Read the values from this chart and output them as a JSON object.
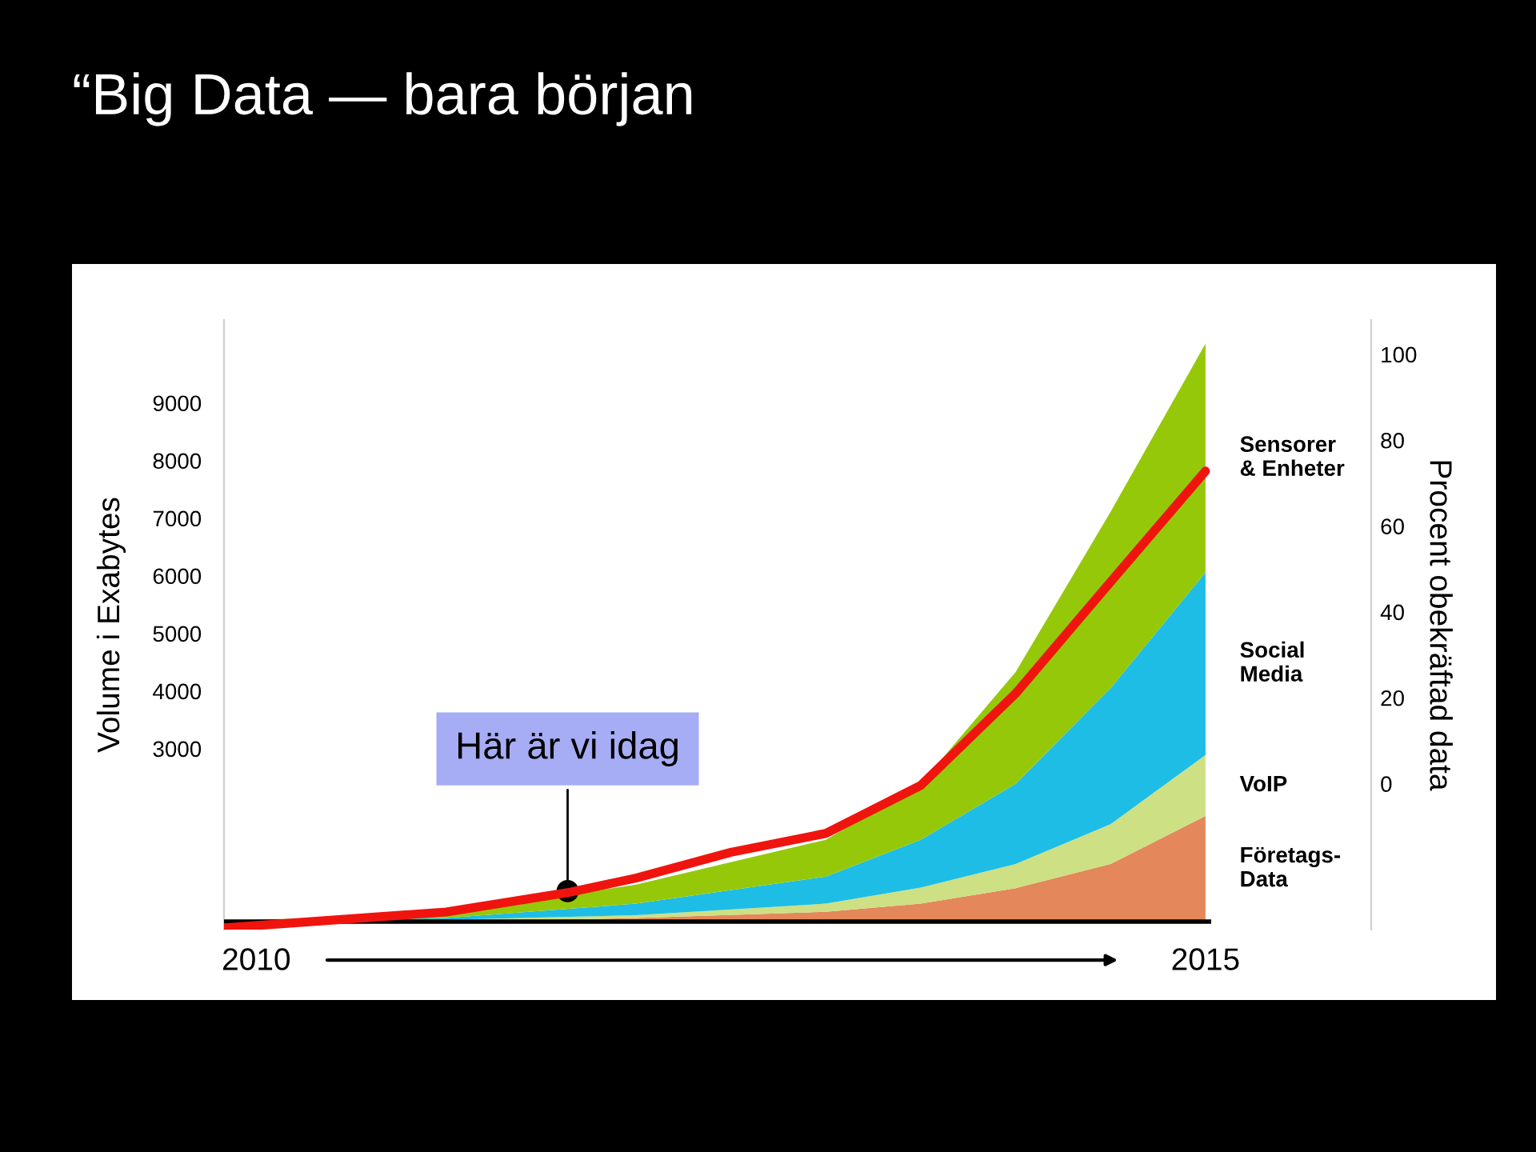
{
  "chart_data": {
    "type": "area",
    "stacked": true,
    "title": "“Big Data — bara början",
    "ylabel": "Volume i Exabytes",
    "y2label": "Procent obekräftad data",
    "x": [
      2010,
      2011,
      2012,
      2013,
      2013.5,
      2014,
      2014.5,
      2015
    ],
    "xlim": [
      2009.83,
      2015.03
    ],
    "xticks": [
      2010,
      2015
    ],
    "ylim": [
      -140,
      10440
    ],
    "yticks": [
      3000,
      4000,
      5000,
      6000,
      7000,
      8000,
      9000
    ],
    "y2lim": [
      -34,
      108
    ],
    "y2ticks": [
      0,
      20,
      40,
      60,
      80,
      100
    ],
    "series": [
      {
        "name": "Företags-\nData",
        "color": "#e4875a",
        "values": [
          0,
          0,
          60,
          170,
          310,
          580,
          1000,
          1830
        ]
      },
      {
        "name": "VoIP",
        "color": "#cde084",
        "values": [
          0,
          30,
          50,
          140,
          280,
          420,
          690,
          1060
        ]
      },
      {
        "name": "Social\nMedia",
        "color": "#1ebde6",
        "values": [
          0,
          30,
          200,
          470,
          830,
          1390,
          2360,
          3170
        ]
      },
      {
        "name": "Sensorer\n& Enheter",
        "color": "#96c80a",
        "values": [
          30,
          80,
          330,
          640,
          970,
          1940,
          3060,
          3970
        ]
      },
      {
        "type": "line",
        "axis": "y2",
        "color": "#f0140f",
        "x": [
          2009.83,
          2011,
          2011.64,
          2012,
          2012.5,
          2013,
          2013.5,
          2014,
          2014.5,
          2015
        ],
        "values": [
          -33.6,
          -29.9,
          -25.4,
          -22,
          -16,
          -11.6,
          -0.4,
          21,
          47,
          72.8
        ]
      }
    ],
    "annotations": [
      {
        "text": "Här är vi idag",
        "x": 2011.64,
        "y": 528
      }
    ]
  }
}
